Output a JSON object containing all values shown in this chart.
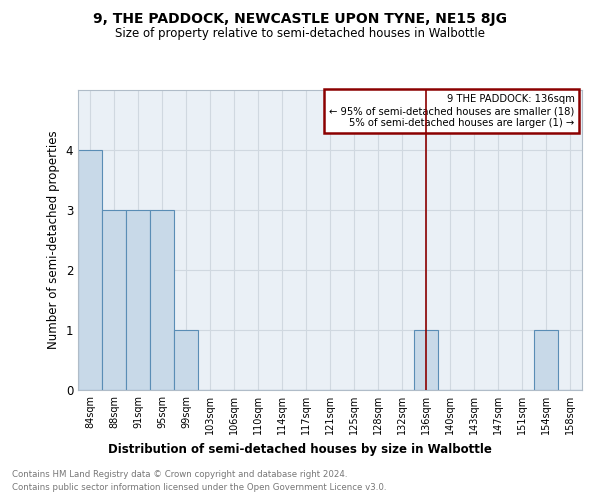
{
  "title": "9, THE PADDOCK, NEWCASTLE UPON TYNE, NE15 8JG",
  "subtitle": "Size of property relative to semi-detached houses in Walbottle",
  "xlabel_bottom": "Distribution of semi-detached houses by size in Walbottle",
  "ylabel": "Number of semi-detached properties",
  "categories": [
    "84sqm",
    "88sqm",
    "91sqm",
    "95sqm",
    "99sqm",
    "103sqm",
    "106sqm",
    "110sqm",
    "114sqm",
    "117sqm",
    "121sqm",
    "125sqm",
    "128sqm",
    "132sqm",
    "136sqm",
    "140sqm",
    "143sqm",
    "147sqm",
    "151sqm",
    "154sqm",
    "158sqm"
  ],
  "values": [
    4,
    3,
    3,
    3,
    1,
    0,
    0,
    0,
    0,
    0,
    0,
    0,
    0,
    0,
    1,
    0,
    0,
    0,
    0,
    1,
    0
  ],
  "bar_color": "#c8d9e8",
  "bar_edge_color": "#5a8db5",
  "grid_color": "#d0d8e0",
  "background_color": "#eaf0f6",
  "vline_x": 14,
  "vline_color": "#8b0000",
  "annotation_text": "9 THE PADDOCK: 136sqm\n← 95% of semi-detached houses are smaller (18)\n5% of semi-detached houses are larger (1) →",
  "annotation_box_color": "#8b0000",
  "footnote1": "Contains HM Land Registry data © Crown copyright and database right 2024.",
  "footnote2": "Contains public sector information licensed under the Open Government Licence v3.0.",
  "ylim": [
    0,
    5
  ],
  "yticks": [
    0,
    1,
    2,
    3,
    4,
    5
  ]
}
